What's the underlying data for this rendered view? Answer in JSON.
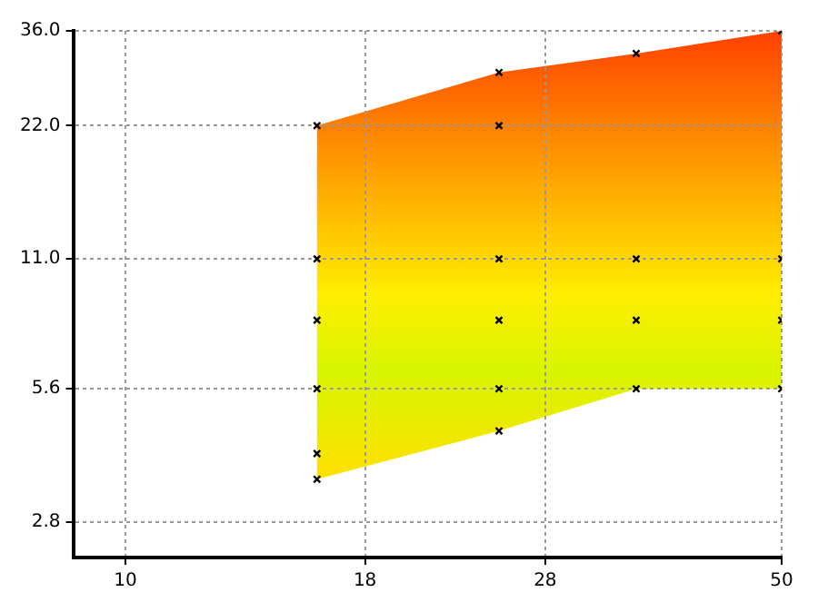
{
  "chart_data": {
    "type": "scatter",
    "log": "xy",
    "grid": true,
    "legend": false,
    "xlim": [
      8.8,
      50
    ],
    "xticks": [
      10,
      18,
      28,
      50
    ],
    "ylim": [
      2.33,
      36
    ],
    "yticks": [
      {
        "value": 2.8,
        "label": "2.8"
      },
      {
        "value": 5.6,
        "label": "5.6"
      },
      {
        "value": 11,
        "label": "11.0"
      },
      {
        "value": 22,
        "label": "22.0"
      },
      {
        "value": 36,
        "label": "36.0"
      }
    ],
    "series": [
      {
        "type": "scatter",
        "color": "#000000",
        "marker": "cross",
        "x": [
          16,
          16,
          16,
          16,
          16,
          16,
          25,
          25,
          25,
          25,
          25,
          25,
          35,
          35,
          35,
          35,
          50,
          50,
          50,
          50
        ],
        "values": [
          22,
          11,
          8,
          5.6,
          4,
          3.5,
          29,
          22,
          11,
          8,
          5.6,
          4.5,
          32,
          11,
          8,
          5.6,
          36,
          11,
          8,
          5.6
        ]
      }
    ]
  }
}
